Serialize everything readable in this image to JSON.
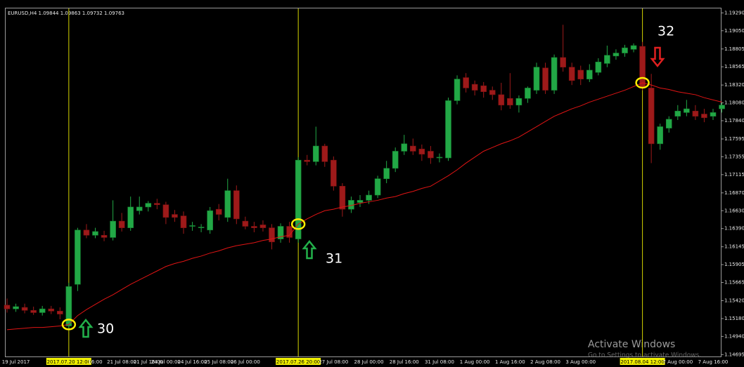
{
  "chart_data": {
    "type": "candlestick",
    "title": "EURUSD,H4 1.09844 1.09863 1.09732 1.09763",
    "categories": [
      null,
      "19 Jul 2017",
      null,
      null,
      null,
      null,
      null,
      "2017.07.20 12:00",
      null,
      null,
      "16:00",
      null,
      null,
      "21 Jul 08:00",
      null,
      null,
      "21 Jul 16:00",
      null,
      "24 Jul 00:00",
      null,
      null,
      "24 Jul 16:00",
      null,
      null,
      "25 Jul 08:00",
      null,
      null,
      "26 Jul 00:00",
      null,
      null,
      null,
      null,
      null,
      "2017.07.26 20:00",
      null,
      null,
      null,
      "27 Jul 08:00",
      null,
      null,
      null,
      "28 Jul 00:00",
      null,
      null,
      null,
      "28 Jul 16:00",
      null,
      null,
      null,
      "31 Jul 08:00",
      null,
      null,
      null,
      "1 Aug 00:00",
      null,
      null,
      null,
      "1 Aug 16:00",
      null,
      null,
      null,
      "2 Aug 08:00",
      null,
      null,
      null,
      "3 Aug 00:00",
      null,
      null,
      null,
      null,
      null,
      null,
      "2017.08.04 12:00",
      null,
      null,
      null,
      "7 Aug 00:00",
      null,
      null,
      null,
      "7 Aug 16:00",
      null
    ],
    "open": [
      1.1536,
      1.1531,
      1.1533,
      1.1529,
      1.1526,
      1.1531,
      1.1528,
      1.1508,
      1.1564,
      1.1637,
      1.163,
      1.163,
      1.1627,
      1.1649,
      1.164,
      1.1663,
      1.1668,
      1.1673,
      1.1671,
      1.1658,
      1.1656,
      1.1642,
      1.164,
      1.1637,
      1.1665,
      1.1654,
      1.169,
      1.1649,
      1.1642,
      1.1644,
      1.164,
      1.1625,
      1.1642,
      1.1625,
      1.1731,
      1.1729,
      1.175,
      1.1731,
      1.1696,
      1.1665,
      1.1674,
      1.1677,
      1.1684,
      1.1706,
      1.172,
      1.1743,
      1.175,
      1.1746,
      1.1743,
      1.1734,
      1.1734,
      1.1811,
      1.1842,
      1.1833,
      1.1831,
      1.1825,
      1.1819,
      1.1814,
      1.1805,
      1.1814,
      1.1825,
      1.1855,
      1.1825,
      1.1869,
      1.1856,
      1.1852,
      1.184,
      1.1849,
      1.1861,
      1.1871,
      1.1875,
      1.188,
      1.1884,
      1.1828,
      1.1753,
      1.1774,
      1.179,
      1.1795,
      1.1797,
      1.1793,
      1.179,
      1.18
    ],
    "high": [
      1.1545,
      1.1538,
      1.1538,
      1.1534,
      1.1535,
      1.1535,
      1.1533,
      1.1566,
      1.164,
      1.1645,
      1.164,
      1.1636,
      1.1677,
      1.166,
      1.1682,
      1.1682,
      1.1676,
      1.1679,
      1.1675,
      1.1664,
      1.1662,
      1.1648,
      1.1645,
      1.1668,
      1.1672,
      1.1706,
      1.1697,
      1.1655,
      1.1648,
      1.165,
      1.1645,
      1.1646,
      1.1648,
      1.1735,
      1.1738,
      1.1776,
      1.1753,
      1.1736,
      1.17,
      1.1682,
      1.1684,
      1.169,
      1.171,
      1.173,
      1.1748,
      1.1765,
      1.176,
      1.1752,
      1.175,
      1.174,
      1.1815,
      1.1845,
      1.1848,
      1.1838,
      1.1836,
      1.183,
      1.1835,
      1.1848,
      1.1818,
      1.183,
      1.1862,
      1.1862,
      1.1873,
      1.1913,
      1.1862,
      1.1858,
      1.186,
      1.1868,
      1.1885,
      1.188,
      1.1886,
      1.1888,
      1.189,
      1.1847,
      1.178,
      1.179,
      1.1805,
      1.1812,
      1.1805,
      1.18,
      1.18,
      1.1808
    ],
    "low": [
      1.1526,
      1.1527,
      1.1525,
      1.1523,
      1.1522,
      1.1524,
      1.1517,
      1.1502,
      1.1555,
      1.1626,
      1.1626,
      1.1622,
      1.1623,
      1.1635,
      1.1636,
      1.1658,
      1.1662,
      1.1665,
      1.1645,
      1.1648,
      1.1632,
      1.1636,
      1.1634,
      1.1632,
      1.165,
      1.1648,
      1.1645,
      1.1638,
      1.1634,
      1.1635,
      1.1611,
      1.162,
      1.162,
      1.162,
      1.1724,
      1.1724,
      1.1722,
      1.169,
      1.1655,
      1.166,
      1.1668,
      1.1672,
      1.168,
      1.17,
      1.1715,
      1.1738,
      1.1738,
      1.173,
      1.1726,
      1.1728,
      1.173,
      1.1806,
      1.1822,
      1.1818,
      1.1815,
      1.1812,
      1.1798,
      1.18,
      1.1795,
      1.1808,
      1.182,
      1.182,
      1.182,
      1.185,
      1.1832,
      1.1832,
      1.1836,
      1.1845,
      1.1856,
      1.1866,
      1.187,
      1.1876,
      1.1825,
      1.1727,
      1.1745,
      1.1768,
      1.1785,
      1.179,
      1.1785,
      1.1782,
      1.1785,
      1.1795
    ],
    "close": [
      1.1531,
      1.1534,
      1.1529,
      1.1526,
      1.1531,
      1.1528,
      1.1524,
      1.1561,
      1.1637,
      1.163,
      1.1635,
      1.1627,
      1.1649,
      1.164,
      1.1668,
      1.1668,
      1.1673,
      1.1671,
      1.1654,
      1.1654,
      1.164,
      1.1643,
      1.1641,
      1.1663,
      1.1658,
      1.169,
      1.1652,
      1.1642,
      1.164,
      1.164,
      1.1621,
      1.1642,
      1.1627,
      1.1731,
      1.1729,
      1.175,
      1.1729,
      1.1696,
      1.1665,
      1.1677,
      1.1677,
      1.1684,
      1.1706,
      1.172,
      1.1743,
      1.1753,
      1.1743,
      1.1739,
      1.1734,
      1.1735,
      1.1811,
      1.184,
      1.1828,
      1.1825,
      1.1823,
      1.1819,
      1.1805,
      1.1805,
      1.1814,
      1.1828,
      1.1856,
      1.1825,
      1.1869,
      1.1856,
      1.1838,
      1.184,
      1.1852,
      1.1863,
      1.1872,
      1.1875,
      1.1882,
      1.1885,
      1.1828,
      1.1753,
      1.1776,
      1.1786,
      1.1797,
      1.18,
      1.179,
      1.1788,
      1.1795,
      1.1805
    ],
    "up_color": "#22a846",
    "down_color": "#9e1a1a",
    "moving_average": {
      "color": "#e01414",
      "values": [
        1.1503,
        1.1504,
        1.1505,
        1.1506,
        1.1506,
        1.1507,
        1.1508,
        1.151,
        1.1522,
        1.153,
        1.1537,
        1.1544,
        1.155,
        1.1557,
        1.1564,
        1.157,
        1.1576,
        1.1582,
        1.1588,
        1.1592,
        1.1595,
        1.1599,
        1.1602,
        1.1606,
        1.1609,
        1.1613,
        1.1616,
        1.1618,
        1.162,
        1.1623,
        1.1625,
        1.1628,
        1.163,
        1.1645,
        1.1652,
        1.1658,
        1.1663,
        1.1665,
        1.1668,
        1.167,
        1.1673,
        1.1675,
        1.1677,
        1.168,
        1.1682,
        1.1686,
        1.1689,
        1.1693,
        1.1696,
        1.1703,
        1.171,
        1.1718,
        1.1727,
        1.1735,
        1.1743,
        1.1748,
        1.1753,
        1.1757,
        1.1762,
        1.1769,
        1.1776,
        1.1783,
        1.179,
        1.1795,
        1.18,
        1.1804,
        1.1809,
        1.1813,
        1.1817,
        1.1821,
        1.1825,
        1.183,
        1.1835,
        1.1832,
        1.1828,
        1.1826,
        1.1823,
        1.1821,
        1.1819,
        1.1815,
        1.1812,
        1.1809
      ]
    },
    "ylim": [
      1.1467,
      1.1935
    ],
    "yticks": [
      {
        "value": 1.1929,
        "label": "1.19290"
      },
      {
        "value": 1.1905,
        "label": "1.19050"
      },
      1.18805,
      1.18565,
      {
        "value": 1.1832,
        "label": "1.18320"
      },
      {
        "value": 1.1808,
        "label": "1.18080"
      },
      {
        "value": 1.1784,
        "label": "1.17840"
      },
      1.17595,
      1.17355,
      1.17115,
      {
        "value": 1.1687,
        "label": "1.16870"
      },
      {
        "value": 1.1663,
        "label": "1.16630"
      },
      {
        "value": 1.1639,
        "label": "1.16390"
      },
      1.16145,
      1.15905,
      1.15665,
      {
        "value": 1.1542,
        "label": "1.15420"
      },
      {
        "value": 1.1518,
        "label": "1.15180"
      },
      {
        "value": 1.1494,
        "label": "1.14940"
      },
      1.14695
    ],
    "grid": false,
    "annotations": [
      "30",
      "31",
      "32"
    ],
    "watermark": [
      "Activate Windows",
      "Go to Settings to activate Windows."
    ]
  }
}
